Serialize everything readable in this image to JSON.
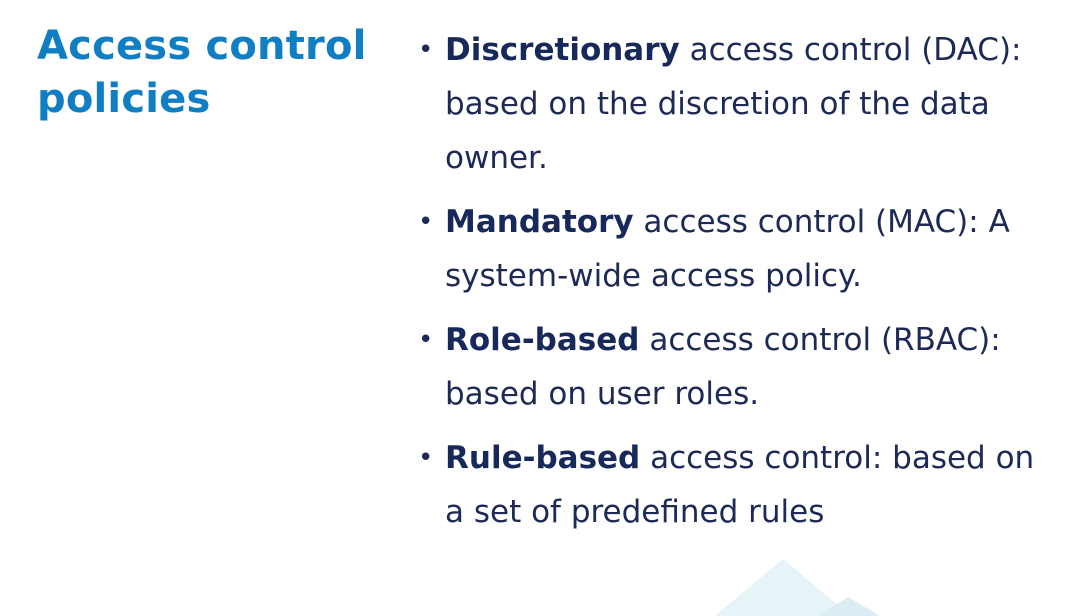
{
  "slide": {
    "title": "Access control policies",
    "bullets": [
      {
        "term": "Discretionary",
        "text": " access control (DAC): based on the discretion of the data owner."
      },
      {
        "term": "Mandatory",
        "text": " access control (MAC): A system-wide access policy."
      },
      {
        "term": "Role-based",
        "text": " access control (RBAC): based on user roles."
      },
      {
        "term": "Rule-based",
        "text": " access control: based on a set of predefined rules"
      }
    ],
    "bullet_symbol": "•",
    "decoration_icon": "mountain-peaks-icon",
    "colors": {
      "title": "#0f7ec2",
      "body_text": "#1c2a55",
      "decoration": "#e6f3f7"
    }
  }
}
